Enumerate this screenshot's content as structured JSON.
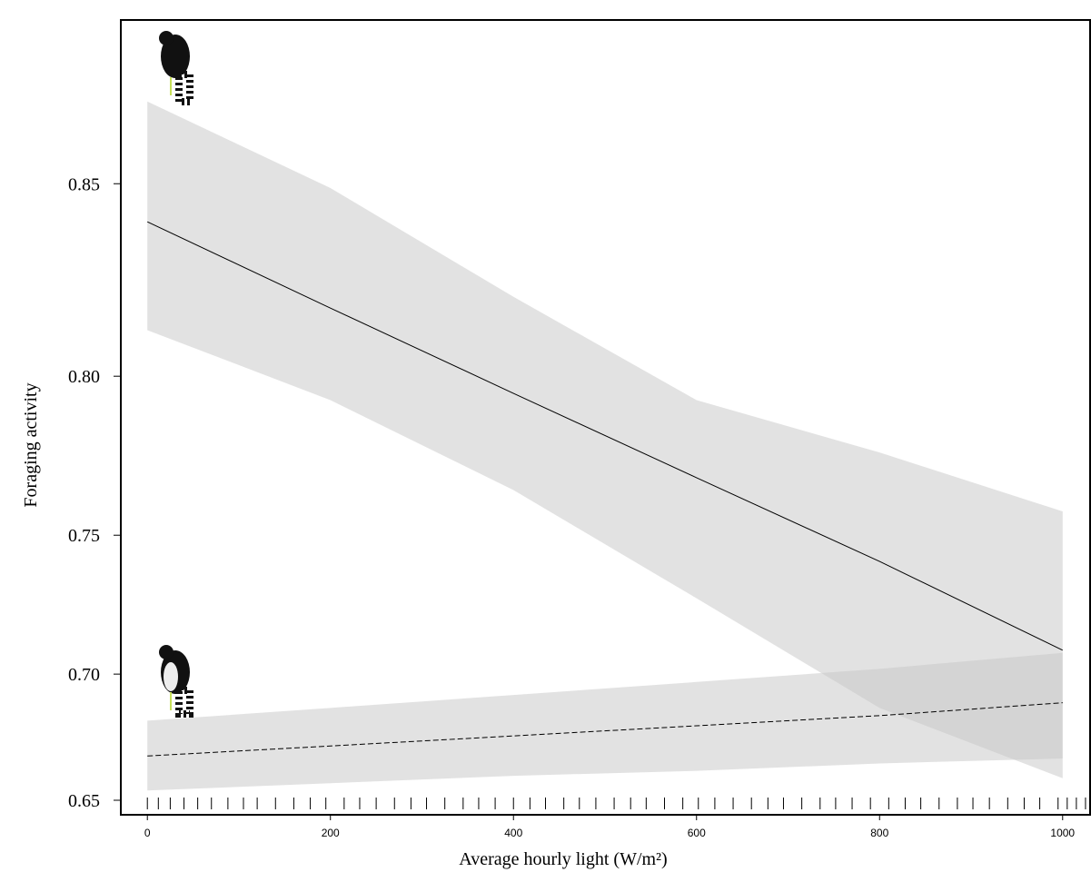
{
  "chart_data": {
    "type": "line",
    "xlabel": "Average hourly light (W/m²)",
    "ylabel": "Foraging activity",
    "x": [
      0,
      200,
      400,
      600,
      800,
      1000
    ],
    "series": [
      {
        "line_style": "solid",
        "color": "#000000",
        "band_color": "#c6c6c6",
        "values": [
          0.841,
          0.819,
          0.795,
          0.769,
          0.741,
          0.709
        ],
        "upper": [
          0.868,
          0.849,
          0.822,
          0.793,
          0.777,
          0.758
        ],
        "lower": [
          0.813,
          0.793,
          0.765,
          0.728,
          0.687,
          0.659
        ]
      },
      {
        "line_style": "dashed",
        "color": "#000000",
        "band_color": "#c6c6c6",
        "values": [
          0.668,
          0.672,
          0.676,
          0.68,
          0.684,
          0.689
        ],
        "upper": [
          0.682,
          0.687,
          0.692,
          0.697,
          0.702,
          0.708
        ],
        "lower": [
          0.654,
          0.657,
          0.66,
          0.662,
          0.665,
          0.667
        ]
      }
    ],
    "rug": [
      0,
      12,
      25,
      40,
      55,
      70,
      88,
      105,
      120,
      140,
      160,
      178,
      195,
      215,
      232,
      250,
      270,
      288,
      305,
      325,
      345,
      362,
      380,
      400,
      418,
      435,
      455,
      472,
      490,
      510,
      528,
      545,
      565,
      585,
      602,
      620,
      640,
      660,
      678,
      695,
      715,
      735,
      752,
      770,
      790,
      810,
      828,
      845,
      865,
      885,
      902,
      920,
      940,
      958,
      975,
      995,
      1005,
      1015,
      1025
    ],
    "xlim": [
      -29,
      1030
    ],
    "ylim": [
      0.644,
      0.884
    ],
    "yscale": "logit",
    "xticks": [
      0,
      200,
      400,
      600,
      800,
      1000
    ],
    "yticks": [
      0.65,
      {
        "value": 0.7,
        "label": "0.70"
      },
      0.75,
      {
        "value": 0.8,
        "label": "0.80"
      },
      0.85
    ]
  }
}
